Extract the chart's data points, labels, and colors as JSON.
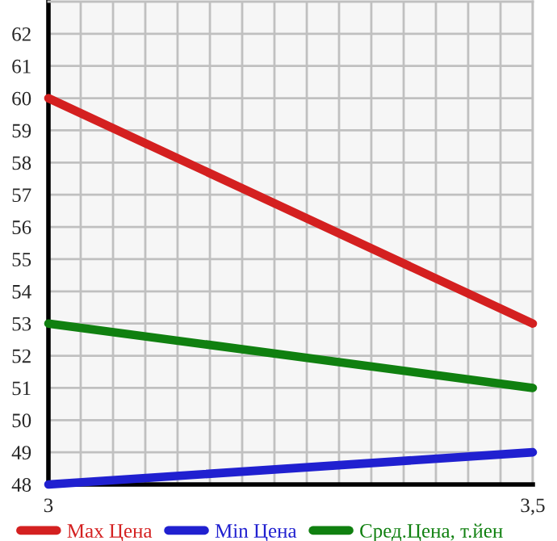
{
  "chart_data": {
    "type": "line",
    "x": [
      3,
      3.5
    ],
    "series": [
      {
        "name": "Max Цена",
        "color": "#d42020",
        "values": [
          60,
          53
        ]
      },
      {
        "name": "Min Цена",
        "color": "#2020d0",
        "values": [
          48,
          49
        ]
      },
      {
        "name": "Сред.Цена, т.йен",
        "color": "#108010",
        "values": [
          53,
          51
        ]
      }
    ],
    "xlim": [
      3,
      3.5
    ],
    "xticks": [
      {
        "value": 3,
        "label": "3"
      },
      {
        "value": 3.0333,
        "label": null
      },
      {
        "value": 3.0667,
        "label": null
      },
      {
        "value": 3.1,
        "label": null
      },
      {
        "value": 3.1333,
        "label": null
      },
      {
        "value": 3.1667,
        "label": null
      },
      {
        "value": 3.2,
        "label": null
      },
      {
        "value": 3.2333,
        "label": null
      },
      {
        "value": 3.2667,
        "label": null
      },
      {
        "value": 3.3,
        "label": null
      },
      {
        "value": 3.3333,
        "label": null
      },
      {
        "value": 3.3667,
        "label": null
      },
      {
        "value": 3.4,
        "label": null
      },
      {
        "value": 3.4333,
        "label": null
      },
      {
        "value": 3.4667,
        "label": null
      },
      {
        "value": 3.5,
        "label": "3,5"
      }
    ],
    "ylim": [
      48,
      63
    ],
    "yticks": [
      48,
      49,
      50,
      51,
      52,
      53,
      54,
      55,
      56,
      57,
      58,
      59,
      60,
      61,
      62
    ],
    "grid": true,
    "legend": "bottom",
    "marker": "none",
    "line_style": "solid"
  }
}
